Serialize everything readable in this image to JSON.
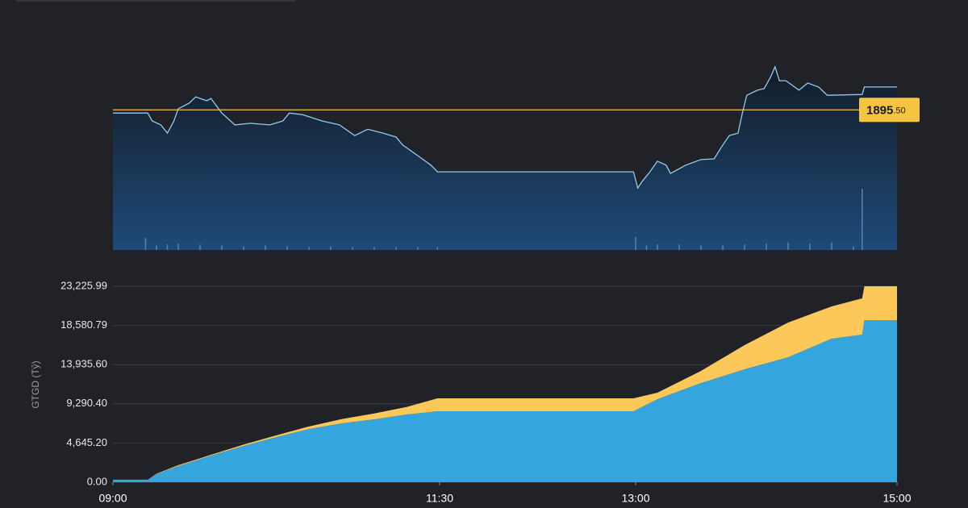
{
  "chart_data": [
    {
      "type": "line",
      "xlim": [
        "09:00",
        "15:00"
      ],
      "ylim": [
        1860,
        1907
      ],
      "x": [
        "09:00",
        "09:16",
        "09:18",
        "09:22",
        "09:25",
        "09:28",
        "09:30",
        "09:35",
        "09:38",
        "09:43",
        "09:45",
        "09:50",
        "09:56",
        "10:03",
        "10:12",
        "10:18",
        "10:21",
        "10:27",
        "10:36",
        "10:44",
        "10:51",
        "10:57",
        "11:04",
        "11:10",
        "11:13",
        "11:21",
        "11:26",
        "11:29",
        "12:59",
        "13:01",
        "13:03",
        "13:06",
        "13:10",
        "13:14",
        "13:16",
        "13:23",
        "13:30",
        "13:36",
        "13:40",
        "13:43",
        "13:47",
        "13:49",
        "13:51",
        "13:56",
        "13:59",
        "14:02",
        "14:04",
        "14:06",
        "14:09",
        "14:15",
        "14:19",
        "14:24",
        "14:28",
        "14:44",
        "14:45",
        "15:00"
      ],
      "series": [
        {
          "color": "#8ecdf0",
          "values": [
            1894.7,
            1894.7,
            1892.7,
            1891.7,
            1889.6,
            1892.7,
            1895.8,
            1897.2,
            1898.8,
            1897.8,
            1898.4,
            1894.7,
            1891.7,
            1892.1,
            1891.7,
            1892.7,
            1894.7,
            1894.3,
            1892.7,
            1891.7,
            1889.0,
            1890.6,
            1889.6,
            1888.6,
            1886.6,
            1883.5,
            1881.5,
            1879.8,
            1879.8,
            1875.7,
            1877.4,
            1879.4,
            1882.5,
            1881.5,
            1879.4,
            1881.5,
            1882.9,
            1883.1,
            1886.6,
            1889.0,
            1889.6,
            1894.7,
            1899.2,
            1900.5,
            1900.9,
            1903.9,
            1906.4,
            1902.9,
            1902.9,
            1900.5,
            1902.3,
            1901.3,
            1899.2,
            1899.4,
            1901.3,
            1901.3
          ]
        }
      ],
      "reference": {
        "value": 1895.5,
        "label": "1895",
        "label_decimals": ".50",
        "color": "#f5c542"
      },
      "volume": {
        "color": "#4f86bd",
        "ylim": [
          0,
          100
        ],
        "x": [
          "09:15",
          "09:20",
          "09:25",
          "09:30",
          "09:40",
          "09:50",
          "10:00",
          "10:10",
          "10:20",
          "10:30",
          "10:40",
          "10:50",
          "11:00",
          "11:10",
          "11:20",
          "11:29",
          "13:00",
          "13:05",
          "13:10",
          "13:20",
          "13:30",
          "13:40",
          "13:50",
          "14:00",
          "14:10",
          "14:20",
          "14:30",
          "14:40",
          "14:44"
        ],
        "values": [
          6.5,
          2.5,
          3,
          3.5,
          3,
          2.5,
          2,
          2.5,
          2,
          1.5,
          2,
          1.5,
          1.5,
          1.5,
          1.5,
          1.5,
          7,
          2.5,
          3,
          3,
          2.5,
          2.5,
          3,
          3.5,
          4,
          3.5,
          4,
          2,
          33
        ]
      }
    },
    {
      "type": "stacked_area",
      "ylabel": "GTGD (Tỷ)",
      "xlim": [
        "09:00",
        "15:00"
      ],
      "xticks": [
        "09:00",
        "11:30",
        "13:00",
        "15:00"
      ],
      "ylim": [
        0,
        23225.99
      ],
      "yticks": [
        {
          "value": 0,
          "label": "0.00"
        },
        {
          "value": 4645.2,
          "label": "4,645.20"
        },
        {
          "value": 9290.4,
          "label": "9,290.40"
        },
        {
          "value": 13935.6,
          "label": "13,935.60"
        },
        {
          "value": 18580.79,
          "label": "18,580.79"
        },
        {
          "value": 23225.99,
          "label": "23,225.99"
        }
      ],
      "grid": true,
      "x": [
        "09:00",
        "09:16",
        "09:20",
        "09:30",
        "09:45",
        "10:00",
        "10:15",
        "10:30",
        "10:45",
        "11:00",
        "11:15",
        "11:29",
        "12:59",
        "13:10",
        "13:30",
        "13:50",
        "14:10",
        "14:30",
        "14:44",
        "14:45",
        "15:00"
      ],
      "series": [
        {
          "color": "#35a5dd",
          "values": [
            300,
            300,
            956,
            1912,
            3154,
            4301,
            5353,
            6308,
            6977,
            7455,
            8029,
            8411,
            8411,
            9845,
            11757,
            13381,
            14815,
            17013,
            17491,
            19212,
            19212
          ]
        },
        {
          "color": "#fdc85a",
          "values": [
            0,
            0,
            50,
            100,
            100,
            150,
            200,
            300,
            500,
            700,
            900,
            1529,
            1529,
            765,
            1434,
            2867,
            4110,
            3823,
            4301,
            4014,
            4014
          ]
        }
      ]
    }
  ]
}
